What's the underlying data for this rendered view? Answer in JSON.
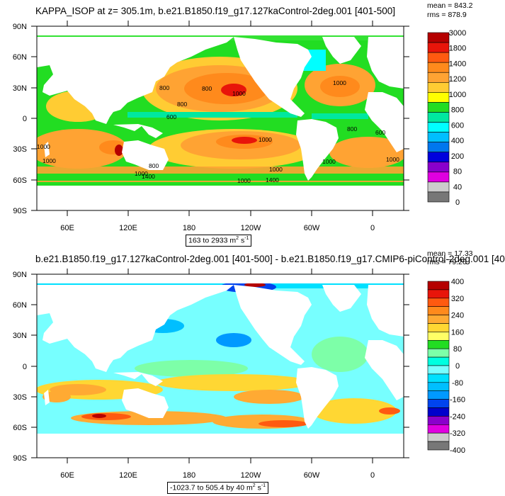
{
  "panels": [
    {
      "title": "KAPPA_ISOP at z= 305.1m, b.e21.B1850.f19_g17.127kaControl-2deg.001 [401-500]",
      "mean_label": "mean = 843.2",
      "rms_label": "rms = 878.9",
      "range_text": "163 to 2933 m",
      "range_unit_sup": "2",
      "range_unit_tail": " s",
      "range_unit_sup2": "-1",
      "colorbar": {
        "labels": [
          "3000",
          "1800",
          "1400",
          "1200",
          "1000",
          "800",
          "600",
          "400",
          "200",
          "80",
          "40",
          "0"
        ],
        "colors": [
          "#b50000",
          "#e8150a",
          "#ff5a10",
          "#ff8a1c",
          "#ffa333",
          "#ffcc33",
          "#ffff00",
          "#22dd22",
          "#00e8a0",
          "#00ffff",
          "#00bfff",
          "#0077ee",
          "#0000dd",
          "#8a00cc",
          "#e000e0",
          "#cccccc",
          "#777777"
        ]
      },
      "contour_labels": [
        "800",
        "800",
        "800",
        "1000",
        "1000",
        "600",
        "600",
        "1000",
        "1000",
        "1000",
        "1000",
        "1000",
        "1000",
        "1000",
        "1400",
        "1400",
        "800",
        "800",
        "1000"
      ]
    },
    {
      "title": "b.e21.B1850.f19_g17.127kaControl-2deg.001 [401-500] - b.e21.B1850.f19_g17.CMIP6-piControl-2deg.001 [40",
      "mean_label": "mean = 17.33",
      "rms_label": "rms = 79.26",
      "range_text": "-1023.7 to 505.4 by 40 m",
      "range_unit_sup": "2",
      "range_unit_tail": " s",
      "range_unit_sup2": "-1",
      "colorbar": {
        "labels": [
          "400",
          "320",
          "240",
          "160",
          "80",
          "0",
          "-80",
          "-160",
          "-240",
          "-320",
          "-400"
        ],
        "colors": [
          "#b50000",
          "#e8150a",
          "#ff5a10",
          "#ff8a1c",
          "#ffaa33",
          "#ffd733",
          "#ffff66",
          "#22dd22",
          "#7dffa8",
          "#00ffe0",
          "#77ffff",
          "#00e0ff",
          "#00bfff",
          "#0099ff",
          "#0044ee",
          "#0000cc",
          "#8a00cc",
          "#e000e0",
          "#cccccc",
          "#777777"
        ]
      }
    }
  ],
  "axes": {
    "lat_labels": [
      "90N",
      "60N",
      "30N",
      "0",
      "30S",
      "60S",
      "90S"
    ],
    "lon_labels": [
      "60E",
      "120E",
      "180",
      "120W",
      "60W",
      "0"
    ]
  }
}
